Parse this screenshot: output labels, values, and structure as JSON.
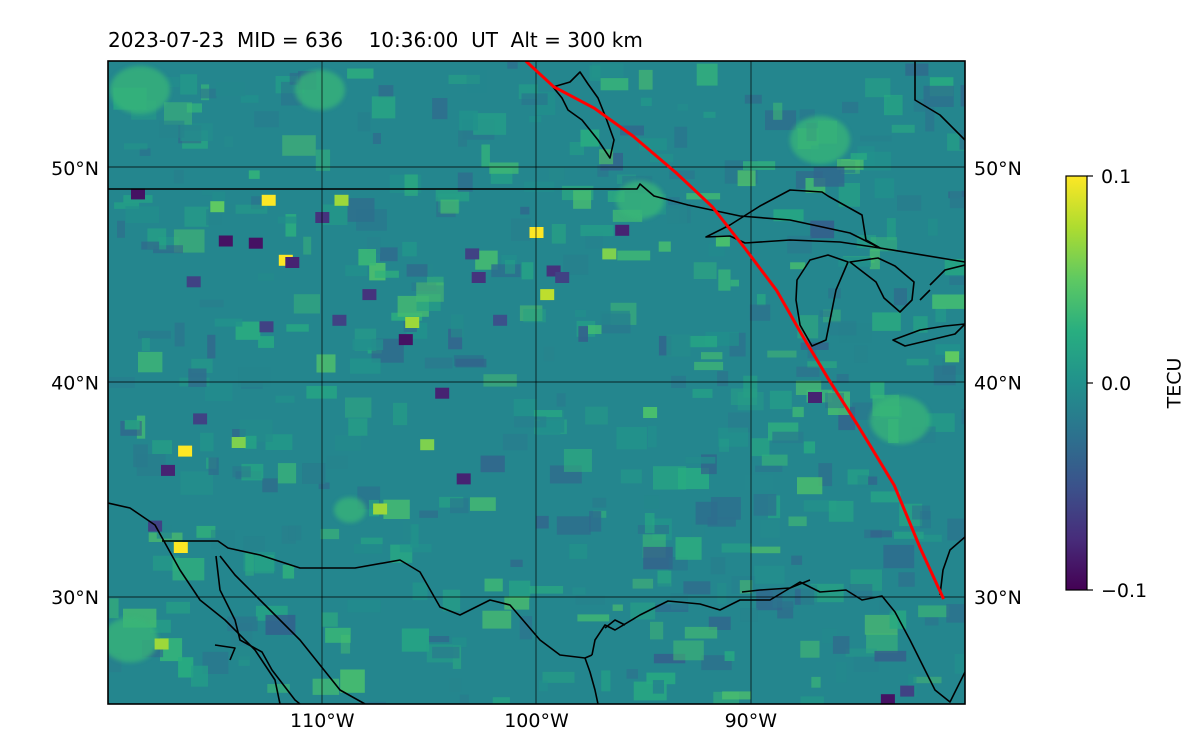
{
  "chart_data": {
    "type": "heatmap",
    "title": "2023-07-23  MID = 636    10:36:00  UT  Alt = 300 km",
    "map_extent": {
      "lon": [
        -120,
        -80
      ],
      "lat": [
        25,
        55
      ]
    },
    "x_ticks": [
      {
        "lon": -110,
        "label": "110°W"
      },
      {
        "lon": -100,
        "label": "100°W"
      },
      {
        "lon": -90,
        "label": "90°W"
      }
    ],
    "y_ticks": [
      {
        "lat": 30,
        "label": "30°N"
      },
      {
        "lat": 40,
        "label": "40°N"
      },
      {
        "lat": 50,
        "label": "50°N"
      }
    ],
    "grid": true,
    "colormap": "viridis",
    "colorbar": {
      "label": "TECU",
      "vmin": -0.1,
      "vmax": 0.1,
      "ticks": [
        {
          "value": 0.1,
          "label": "0.1"
        },
        {
          "value": 0.0,
          "label": "0.0"
        },
        {
          "value": -0.1,
          "label": "−0.1"
        }
      ]
    },
    "track": {
      "color": "#ff0000",
      "points": [
        [
          -100.5,
          55
        ],
        [
          -99.2,
          53.8
        ],
        [
          -97.3,
          52.8
        ],
        [
          -95.5,
          51.5
        ],
        [
          -93.5,
          49.8
        ],
        [
          -91.8,
          48.2
        ],
        [
          -90.3,
          46.3
        ],
        [
          -88.8,
          44.3
        ],
        [
          -87.6,
          42.2
        ],
        [
          -86.4,
          40.2
        ],
        [
          -85,
          38
        ],
        [
          -83.3,
          35.2
        ],
        [
          -82.1,
          32.3
        ],
        [
          -81,
          29.9
        ]
      ]
    },
    "anomalies": [
      {
        "lon": -118.6,
        "lat": 48.8,
        "value": -0.09
      },
      {
        "lon": -117.2,
        "lat": 35.9,
        "value": -0.08
      },
      {
        "lon": -117.8,
        "lat": 33.3,
        "value": -0.06
      },
      {
        "lon": -116.4,
        "lat": 36.8,
        "value": 0.1
      },
      {
        "lon": -116.6,
        "lat": 32.3,
        "value": 0.1
      },
      {
        "lon": -114.9,
        "lat": 48.2,
        "value": 0.05
      },
      {
        "lon": -114.5,
        "lat": 46.6,
        "value": -0.09
      },
      {
        "lon": -113.1,
        "lat": 46.5,
        "value": -0.09
      },
      {
        "lon": -112.5,
        "lat": 48.5,
        "value": 0.1
      },
      {
        "lon": -111.7,
        "lat": 45.7,
        "value": 0.1
      },
      {
        "lon": -111.4,
        "lat": 45.6,
        "value": -0.08
      },
      {
        "lon": -110,
        "lat": 47.7,
        "value": -0.07
      },
      {
        "lon": -109.1,
        "lat": 48.5,
        "value": 0.07
      },
      {
        "lon": -109.2,
        "lat": 42.9,
        "value": -0.06
      },
      {
        "lon": -116,
        "lat": 44.7,
        "value": -0.06
      },
      {
        "lon": -115.7,
        "lat": 38.3,
        "value": -0.06
      },
      {
        "lon": -112.6,
        "lat": 42.6,
        "value": -0.06
      },
      {
        "lon": -113.9,
        "lat": 37.2,
        "value": 0.06
      },
      {
        "lon": -107.8,
        "lat": 44.1,
        "value": -0.07
      },
      {
        "lon": -105.8,
        "lat": 42.8,
        "value": 0.07
      },
      {
        "lon": -106.1,
        "lat": 42.0,
        "value": -0.09
      },
      {
        "lon": -104.4,
        "lat": 39.5,
        "value": -0.08
      },
      {
        "lon": -105.1,
        "lat": 37.1,
        "value": 0.06
      },
      {
        "lon": -107.3,
        "lat": 34.1,
        "value": 0.07
      },
      {
        "lon": -103.4,
        "lat": 35.5,
        "value": -0.08
      },
      {
        "lon": -100,
        "lat": 47.0,
        "value": 0.1
      },
      {
        "lon": -99.2,
        "lat": 45.2,
        "value": -0.07
      },
      {
        "lon": -99.5,
        "lat": 44.1,
        "value": 0.08
      },
      {
        "lon": -98.8,
        "lat": 44.9,
        "value": -0.06
      },
      {
        "lon": -96.0,
        "lat": 47.1,
        "value": -0.08
      },
      {
        "lon": -96.6,
        "lat": 46.0,
        "value": 0.06
      },
      {
        "lon": -103,
        "lat": 46.0,
        "value": -0.06
      },
      {
        "lon": -102.7,
        "lat": 44.9,
        "value": -0.07
      },
      {
        "lon": -101.7,
        "lat": 42.9,
        "value": -0.05
      },
      {
        "lon": -87.0,
        "lat": 39.3,
        "value": -0.08
      },
      {
        "lon": -83.6,
        "lat": 25.2,
        "value": -0.09
      },
      {
        "lon": -82.7,
        "lat": 25.6,
        "value": -0.06
      },
      {
        "lon": -117.5,
        "lat": 27.8,
        "value": 0.07
      },
      {
        "lon": -91.3,
        "lat": 46.6,
        "value": 0.04
      },
      {
        "lon": -94.7,
        "lat": 38.6,
        "value": 0.04
      },
      {
        "lon": -80.6,
        "lat": 41.2,
        "value": 0.05
      }
    ]
  }
}
